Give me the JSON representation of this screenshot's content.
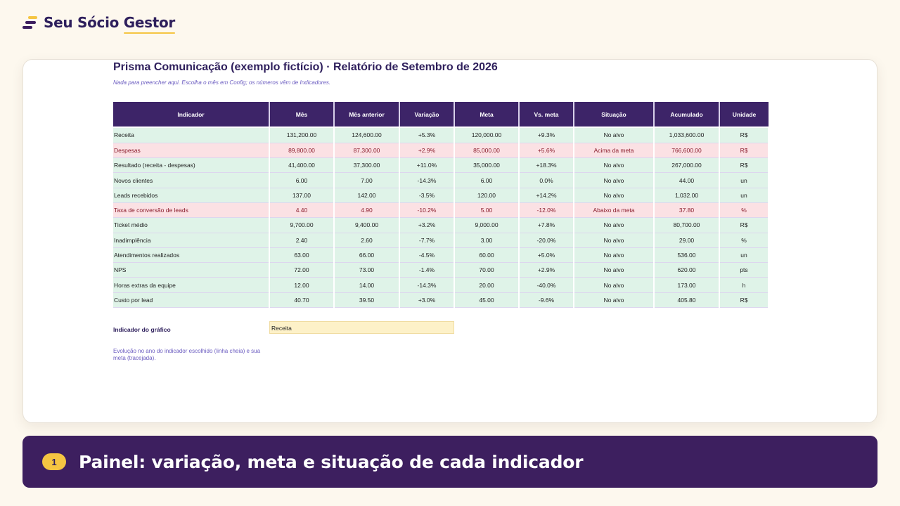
{
  "brand": {
    "name_part1": "Seu Sócio ",
    "name_part2": "Gestor",
    "logo_icon": "brand-stripes-icon",
    "accent_color": "#f5c542",
    "primary_color": "#3d1f5f"
  },
  "report": {
    "title": "Prisma Comunicação (exemplo fictício) · Relatório de Setembro de 2026",
    "subtitle": "Nada para preencher aqui. Escolha o mês em Config; os números vêm de Indicadores."
  },
  "table": {
    "headers": [
      "Indicador",
      "Mês",
      "Mês anterior",
      "Variação",
      "Meta",
      "Vs. meta",
      "Situação",
      "Acumulado",
      "Unidade"
    ],
    "rows": [
      {
        "status": "ok",
        "cells": [
          "Receita",
          "131,200.00",
          "124,600.00",
          "+5.3%",
          "120,000.00",
          "+9.3%",
          "No alvo",
          "1,033,600.00",
          "R$"
        ]
      },
      {
        "status": "bad",
        "cells": [
          "Despesas",
          "89,800.00",
          "87,300.00",
          "+2.9%",
          "85,000.00",
          "+5.6%",
          "Acima da meta",
          "766,600.00",
          "R$"
        ]
      },
      {
        "status": "ok",
        "cells": [
          "Resultado (receita - despesas)",
          "41,400.00",
          "37,300.00",
          "+11.0%",
          "35,000.00",
          "+18.3%",
          "No alvo",
          "267,000.00",
          "R$"
        ]
      },
      {
        "status": "ok",
        "cells": [
          "Novos clientes",
          "6.00",
          "7.00",
          "-14.3%",
          "6.00",
          "0.0%",
          "No alvo",
          "44.00",
          "un"
        ]
      },
      {
        "status": "ok",
        "cells": [
          "Leads recebidos",
          "137.00",
          "142.00",
          "-3.5%",
          "120.00",
          "+14.2%",
          "No alvo",
          "1,032.00",
          "un"
        ]
      },
      {
        "status": "bad",
        "cells": [
          "Taxa de conversão de leads",
          "4.40",
          "4.90",
          "-10.2%",
          "5.00",
          "-12.0%",
          "Abaixo da meta",
          "37.80",
          "%"
        ]
      },
      {
        "status": "ok",
        "cells": [
          "Ticket médio",
          "9,700.00",
          "9,400.00",
          "+3.2%",
          "9,000.00",
          "+7.8%",
          "No alvo",
          "80,700.00",
          "R$"
        ]
      },
      {
        "status": "ok",
        "cells": [
          "Inadimplência",
          "2.40",
          "2.60",
          "-7.7%",
          "3.00",
          "-20.0%",
          "No alvo",
          "29.00",
          "%"
        ]
      },
      {
        "status": "ok",
        "cells": [
          "Atendimentos realizados",
          "63.00",
          "66.00",
          "-4.5%",
          "60.00",
          "+5.0%",
          "No alvo",
          "536.00",
          "un"
        ]
      },
      {
        "status": "ok",
        "cells": [
          "NPS",
          "72.00",
          "73.00",
          "-1.4%",
          "70.00",
          "+2.9%",
          "No alvo",
          "620.00",
          "pts"
        ]
      },
      {
        "status": "ok",
        "cells": [
          "Horas extras da equipe",
          "12.00",
          "14.00",
          "-14.3%",
          "20.00",
          "-40.0%",
          "No alvo",
          "173.00",
          "h"
        ]
      },
      {
        "status": "ok",
        "cells": [
          "Custo por lead",
          "40.70",
          "39.50",
          "+3.0%",
          "45.00",
          "-9.6%",
          "No alvo",
          "405.80",
          "R$"
        ]
      }
    ]
  },
  "chart_selector": {
    "label": "Indicador do gráfico",
    "value": "Receita",
    "note": "Evolução no ano do indicador escolhido (linha cheia) e sua meta (tracejada)."
  },
  "banner": {
    "step": "1",
    "text": "Painel: variação, meta e situação de cada indicador"
  }
}
